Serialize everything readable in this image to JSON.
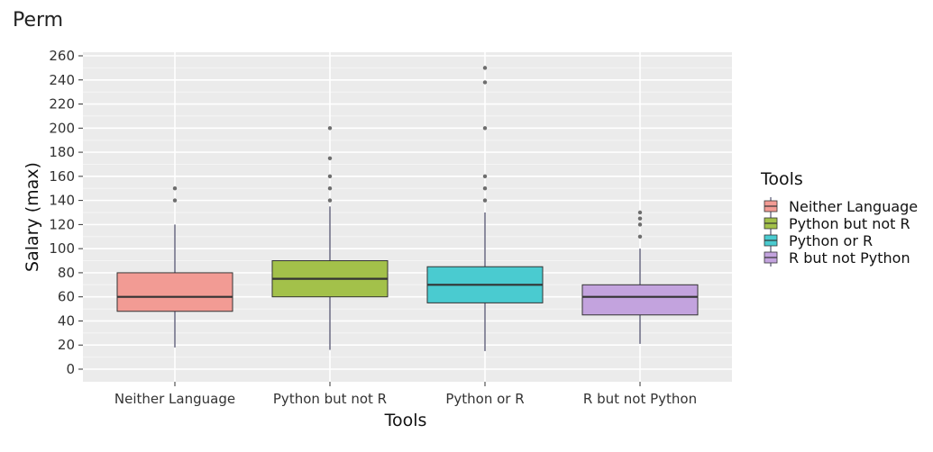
{
  "chart_data": {
    "type": "boxplot",
    "title": "Perm",
    "xlabel": "Tools",
    "ylabel": "Salary (max)",
    "ylim": [
      -12,
      268
    ],
    "yticks": [
      0,
      20,
      40,
      60,
      80,
      100,
      120,
      140,
      160,
      180,
      200,
      220,
      240,
      260
    ],
    "grid": true,
    "legend": {
      "title": "Tools",
      "position": "right"
    },
    "categories": [
      "Neither Language",
      "Python but not R",
      "Python or R",
      "R but not Python"
    ],
    "boxes": [
      {
        "name": "Neither Language",
        "color": "#F29B94",
        "whisker_low": 18,
        "q1": 48,
        "median": 60,
        "q3": 80,
        "whisker_high": 120,
        "outliers": [
          140,
          150
        ]
      },
      {
        "name": "Python but not R",
        "color": "#A3C14A",
        "whisker_low": 16,
        "q1": 60,
        "median": 75,
        "q3": 90,
        "whisker_high": 135,
        "outliers": [
          140,
          150,
          160,
          175,
          200
        ]
      },
      {
        "name": "Python or R",
        "color": "#4ACBD0",
        "whisker_low": 15,
        "q1": 55,
        "median": 70,
        "q3": 85,
        "whisker_high": 130,
        "outliers": [
          140,
          150,
          160,
          200,
          238,
          250
        ]
      },
      {
        "name": "R but not Python",
        "color": "#C3A3DE",
        "whisker_low": 21,
        "q1": 45,
        "median": 60,
        "q3": 70,
        "whisker_high": 100,
        "outliers": [
          110,
          120,
          125,
          130
        ]
      }
    ]
  }
}
